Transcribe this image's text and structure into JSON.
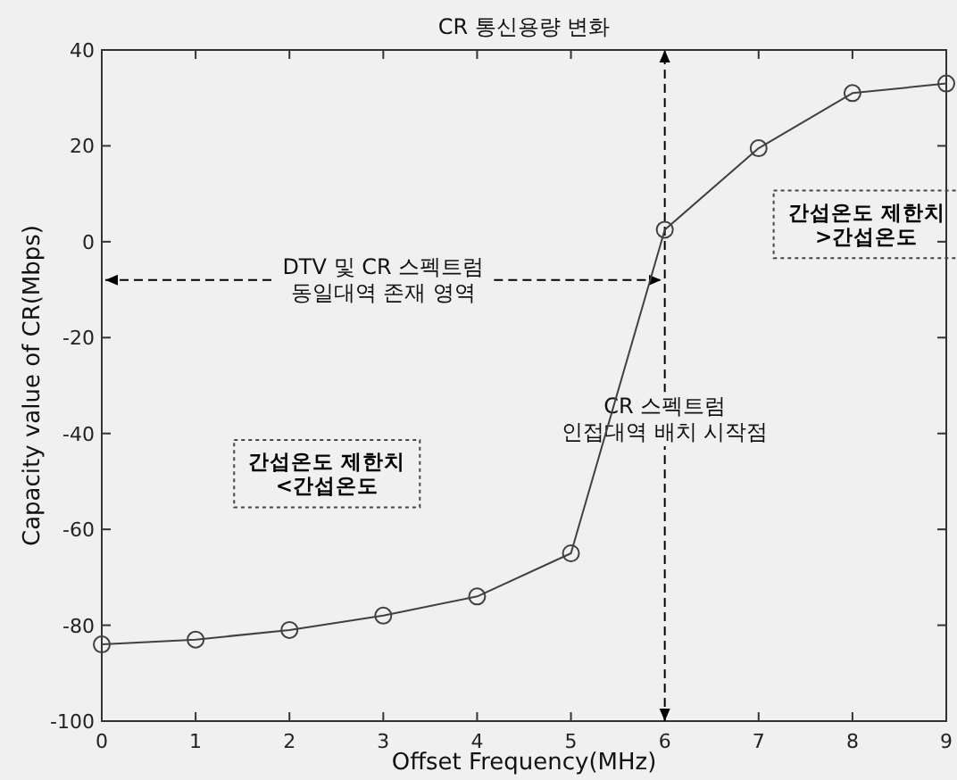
{
  "chart_data": {
    "type": "line",
    "title": "CR 통신용량 변화",
    "xlabel": "Offset Frequency(MHz)",
    "ylabel": "Capacity value of CR(Mbps)",
    "x": [
      0,
      1,
      2,
      3,
      4,
      5,
      6,
      7,
      8,
      9
    ],
    "series": [
      {
        "color": "#404040",
        "values": [
          -84,
          -83,
          -81,
          -78,
          -74,
          -65,
          2.5,
          19.5,
          31,
          33
        ]
      }
    ],
    "marker": "circle",
    "line_style": "solid",
    "grid": false,
    "xlim": [
      0,
      9
    ],
    "xticks": [
      0,
      1,
      2,
      3,
      4,
      5,
      6,
      7,
      8,
      9
    ],
    "ylim": [
      -100,
      40
    ],
    "yticks": [
      -100,
      -80,
      -60,
      -40,
      -20,
      0,
      20,
      40
    ],
    "ref_lines": [
      {
        "axis": "x",
        "value": 6,
        "label": "CR 스펙트럼\n인접대역 배치 시작점",
        "color": "#000000",
        "line_style": "dashed"
      }
    ],
    "annotations": [
      {
        "text": "DTV 및 CR 스펙트럼\n동일대역 존재 영역",
        "x": 6,
        "y": -8
      },
      "간섭온도 제한치\n>간섭온도",
      "간섭온도 제한치\n<간섭온도"
    ]
  }
}
